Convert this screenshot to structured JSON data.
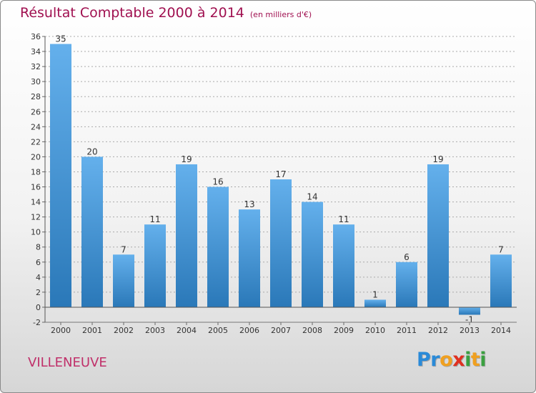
{
  "title": "Résultat Comptable 2000 à 2014",
  "subtitle": "(en milliers d'€)",
  "location": "VILLENEUVE",
  "brand": {
    "letters": [
      "P",
      "r",
      "o",
      "x",
      "i",
      "t",
      "i"
    ],
    "colors": [
      "#2a8ad8",
      "#2a8ad8",
      "#f0a020",
      "#e03020",
      "#3aa040",
      "#f0a020",
      "#3aa040"
    ]
  },
  "colors": {
    "title": "#a01050",
    "location": "#c0306a",
    "bar_top": "#64b0ec",
    "bar_bottom": "#2a78b8",
    "grid": "#aaaaaa",
    "axis_text": "#333333"
  },
  "chart_data": {
    "type": "bar",
    "title": "Résultat Comptable 2000 à 2014",
    "ylabel": "en milliers d'€",
    "xlabel": "",
    "categories": [
      "2000",
      "2001",
      "2002",
      "2003",
      "2004",
      "2005",
      "2006",
      "2007",
      "2008",
      "2009",
      "2010",
      "2011",
      "2012",
      "2013",
      "2014"
    ],
    "values": [
      35,
      20,
      7,
      11,
      19,
      16,
      13,
      17,
      14,
      11,
      1,
      6,
      19,
      -1,
      7
    ],
    "data_labels": [
      "35",
      "20",
      "7",
      "11",
      "19",
      "16",
      "13",
      "17",
      "14",
      "11",
      "1",
      "6",
      "19",
      "-1",
      "7"
    ],
    "ylim": [
      -2,
      36
    ],
    "yticks": [
      -2,
      0,
      2,
      4,
      6,
      8,
      10,
      12,
      14,
      16,
      18,
      20,
      22,
      24,
      26,
      28,
      30,
      32,
      34,
      36
    ],
    "grid": true
  }
}
